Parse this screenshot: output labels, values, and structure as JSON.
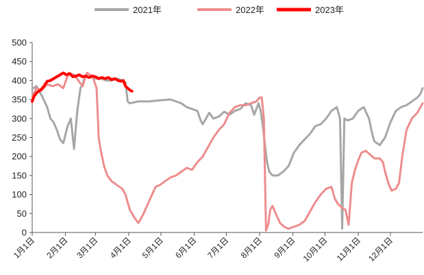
{
  "chart_data": {
    "type": "line",
    "x_axis": {
      "tick_labels": [
        "1月1日",
        "2月1日",
        "3月1日",
        "4月1日",
        "5月1日",
        "6月1日",
        "7月1日",
        "8月1日",
        "9月1日",
        "10月1日",
        "11月1日",
        "12月1日"
      ],
      "tick_days": [
        1,
        32,
        60,
        91,
        121,
        152,
        182,
        213,
        244,
        274,
        305,
        335
      ],
      "range": [
        1,
        365
      ]
    },
    "y_axis": {
      "tick_labels": [
        "0",
        "50",
        "100",
        "150",
        "200",
        "250",
        "300",
        "350",
        "400",
        "450",
        "500"
      ],
      "ylim": [
        0,
        500
      ]
    },
    "legend_position": "top",
    "grid": false,
    "series": [
      {
        "name": "2021年",
        "color": "#A6A6A6",
        "points": [
          [
            1,
            378
          ],
          [
            5,
            385
          ],
          [
            10,
            360
          ],
          [
            15,
            330
          ],
          [
            18,
            300
          ],
          [
            21,
            290
          ],
          [
            24,
            270
          ],
          [
            27,
            245
          ],
          [
            30,
            235
          ],
          [
            34,
            280
          ],
          [
            37,
            300
          ],
          [
            40,
            220
          ],
          [
            43,
            320
          ],
          [
            46,
            380
          ],
          [
            48,
            390
          ],
          [
            50,
            410
          ],
          [
            55,
            410
          ],
          [
            60,
            405
          ],
          [
            65,
            405
          ],
          [
            70,
            400
          ],
          [
            75,
            400
          ],
          [
            80,
            405
          ],
          [
            85,
            400
          ],
          [
            88,
            395
          ],
          [
            90,
            345
          ],
          [
            92,
            340
          ],
          [
            100,
            345
          ],
          [
            110,
            345
          ],
          [
            120,
            348
          ],
          [
            130,
            350
          ],
          [
            135,
            345
          ],
          [
            140,
            340
          ],
          [
            145,
            330
          ],
          [
            150,
            325
          ],
          [
            155,
            320
          ],
          [
            158,
            295
          ],
          [
            160,
            285
          ],
          [
            163,
            300
          ],
          [
            166,
            315
          ],
          [
            170,
            300
          ],
          [
            175,
            305
          ],
          [
            180,
            318
          ],
          [
            185,
            310
          ],
          [
            190,
            320
          ],
          [
            195,
            325
          ],
          [
            200,
            340
          ],
          [
            205,
            335
          ],
          [
            208,
            310
          ],
          [
            212,
            340
          ],
          [
            214,
            320
          ],
          [
            216,
            280
          ],
          [
            218,
            230
          ],
          [
            220,
            185
          ],
          [
            222,
            160
          ],
          [
            225,
            150
          ],
          [
            230,
            150
          ],
          [
            235,
            160
          ],
          [
            240,
            175
          ],
          [
            245,
            210
          ],
          [
            250,
            230
          ],
          [
            255,
            245
          ],
          [
            260,
            260
          ],
          [
            265,
            280
          ],
          [
            270,
            285
          ],
          [
            275,
            300
          ],
          [
            280,
            320
          ],
          [
            285,
            330
          ],
          [
            288,
            300
          ],
          [
            290,
            10
          ],
          [
            292,
            300
          ],
          [
            295,
            295
          ],
          [
            300,
            300
          ],
          [
            305,
            320
          ],
          [
            310,
            330
          ],
          [
            315,
            300
          ],
          [
            318,
            260
          ],
          [
            320,
            240
          ],
          [
            325,
            230
          ],
          [
            330,
            250
          ],
          [
            335,
            290
          ],
          [
            340,
            320
          ],
          [
            345,
            330
          ],
          [
            350,
            335
          ],
          [
            355,
            345
          ],
          [
            360,
            355
          ],
          [
            363,
            365
          ],
          [
            365,
            380
          ]
        ]
      },
      {
        "name": "2022年",
        "color": "#EE8C8C",
        "points": [
          [
            1,
            358
          ],
          [
            5,
            380
          ],
          [
            10,
            375
          ],
          [
            15,
            390
          ],
          [
            20,
            385
          ],
          [
            25,
            390
          ],
          [
            30,
            380
          ],
          [
            35,
            420
          ],
          [
            40,
            415
          ],
          [
            44,
            400
          ],
          [
            48,
            385
          ],
          [
            52,
            420
          ],
          [
            55,
            415
          ],
          [
            58,
            405
          ],
          [
            61,
            380
          ],
          [
            63,
            250
          ],
          [
            65,
            215
          ],
          [
            68,
            175
          ],
          [
            71,
            150
          ],
          [
            75,
            135
          ],
          [
            80,
            125
          ],
          [
            85,
            115
          ],
          [
            88,
            100
          ],
          [
            92,
            60
          ],
          [
            96,
            40
          ],
          [
            100,
            25
          ],
          [
            104,
            45
          ],
          [
            108,
            70
          ],
          [
            112,
            95
          ],
          [
            116,
            120
          ],
          [
            120,
            125
          ],
          [
            125,
            135
          ],
          [
            130,
            145
          ],
          [
            135,
            150
          ],
          [
            140,
            160
          ],
          [
            145,
            170
          ],
          [
            150,
            165
          ],
          [
            155,
            185
          ],
          [
            160,
            200
          ],
          [
            165,
            225
          ],
          [
            170,
            250
          ],
          [
            175,
            270
          ],
          [
            180,
            285
          ],
          [
            185,
            315
          ],
          [
            190,
            330
          ],
          [
            195,
            335
          ],
          [
            200,
            335
          ],
          [
            205,
            340
          ],
          [
            210,
            345
          ],
          [
            213,
            355
          ],
          [
            215,
            355
          ],
          [
            217,
            300
          ],
          [
            219,
            5
          ],
          [
            221,
            20
          ],
          [
            223,
            60
          ],
          [
            225,
            70
          ],
          [
            228,
            50
          ],
          [
            232,
            25
          ],
          [
            236,
            15
          ],
          [
            240,
            10
          ],
          [
            245,
            15
          ],
          [
            250,
            20
          ],
          [
            255,
            30
          ],
          [
            260,
            55
          ],
          [
            265,
            80
          ],
          [
            270,
            100
          ],
          [
            275,
            115
          ],
          [
            280,
            120
          ],
          [
            283,
            90
          ],
          [
            286,
            75
          ],
          [
            290,
            65
          ],
          [
            293,
            60
          ],
          [
            296,
            20
          ],
          [
            299,
            130
          ],
          [
            302,
            165
          ],
          [
            305,
            190
          ],
          [
            308,
            210
          ],
          [
            312,
            215
          ],
          [
            316,
            205
          ],
          [
            320,
            195
          ],
          [
            325,
            195
          ],
          [
            328,
            185
          ],
          [
            330,
            160
          ],
          [
            333,
            130
          ],
          [
            336,
            110
          ],
          [
            340,
            115
          ],
          [
            343,
            130
          ],
          [
            346,
            200
          ],
          [
            350,
            270
          ],
          [
            355,
            300
          ],
          [
            360,
            315
          ],
          [
            365,
            340
          ]
        ]
      },
      {
        "name": "2023年",
        "color": "#FF0000",
        "points": [
          [
            1,
            345
          ],
          [
            3,
            360
          ],
          [
            6,
            370
          ],
          [
            9,
            375
          ],
          [
            12,
            385
          ],
          [
            15,
            398
          ],
          [
            18,
            400
          ],
          [
            21,
            405
          ],
          [
            24,
            410
          ],
          [
            27,
            415
          ],
          [
            30,
            420
          ],
          [
            33,
            415
          ],
          [
            36,
            418
          ],
          [
            39,
            410
          ],
          [
            42,
            412
          ],
          [
            45,
            415
          ],
          [
            48,
            410
          ],
          [
            51,
            412
          ],
          [
            54,
            408
          ],
          [
            57,
            412
          ],
          [
            60,
            410
          ],
          [
            63,
            405
          ],
          [
            66,
            408
          ],
          [
            69,
            405
          ],
          [
            72,
            408
          ],
          [
            75,
            402
          ],
          [
            78,
            405
          ],
          [
            81,
            400
          ],
          [
            84,
            398
          ],
          [
            86,
            400
          ],
          [
            88,
            385
          ],
          [
            90,
            380
          ],
          [
            92,
            375
          ],
          [
            94,
            372
          ]
        ]
      }
    ]
  }
}
